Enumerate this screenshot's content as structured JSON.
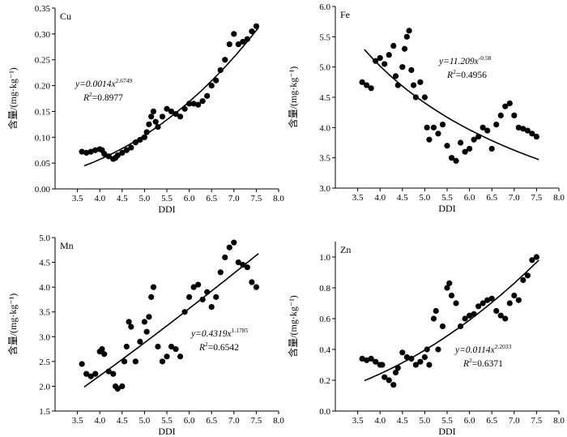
{
  "chart_data": [
    {
      "type": "scatter",
      "element": "Cu",
      "xlabel": "DDI",
      "ylabel": "含量/(mg·kg⁻¹)",
      "xlim": [
        3.0,
        8.0
      ],
      "xticks": [
        3.5,
        4.0,
        4.5,
        5.0,
        5.5,
        6.0,
        6.5,
        7.0,
        7.5,
        8.0
      ],
      "ylim": [
        0.0,
        0.35
      ],
      "yticks": [
        0.0,
        0.05,
        0.1,
        0.15,
        0.2,
        0.25,
        0.3,
        0.35
      ],
      "ytick_decimals": 2,
      "grid": false,
      "fit": {
        "a": 0.0014,
        "b": 2.6749,
        "x_range": [
          3.65,
          7.55
        ]
      },
      "equation": {
        "lhs": "y=0.0014x",
        "exp": "2.6749"
      },
      "r2": {
        "label": "R",
        "sup": "2",
        "value": "=0.8977"
      },
      "eq_pos": "upper-left",
      "points": [
        [
          3.6,
          0.072
        ],
        [
          3.7,
          0.07
        ],
        [
          3.8,
          0.072
        ],
        [
          3.9,
          0.075
        ],
        [
          4.0,
          0.077
        ],
        [
          4.05,
          0.075
        ],
        [
          4.1,
          0.068
        ],
        [
          4.2,
          0.063
        ],
        [
          4.3,
          0.058
        ],
        [
          4.35,
          0.06
        ],
        [
          4.4,
          0.065
        ],
        [
          4.5,
          0.07
        ],
        [
          4.6,
          0.075
        ],
        [
          4.7,
          0.08
        ],
        [
          4.8,
          0.09
        ],
        [
          4.9,
          0.095
        ],
        [
          5.0,
          0.1
        ],
        [
          5.05,
          0.11
        ],
        [
          5.1,
          0.125
        ],
        [
          5.15,
          0.14
        ],
        [
          5.2,
          0.15
        ],
        [
          5.25,
          0.13
        ],
        [
          5.3,
          0.12
        ],
        [
          5.4,
          0.14
        ],
        [
          5.5,
          0.155
        ],
        [
          5.6,
          0.15
        ],
        [
          5.7,
          0.145
        ],
        [
          5.8,
          0.14
        ],
        [
          5.9,
          0.155
        ],
        [
          6.0,
          0.165
        ],
        [
          6.1,
          0.165
        ],
        [
          6.2,
          0.163
        ],
        [
          6.3,
          0.17
        ],
        [
          6.4,
          0.18
        ],
        [
          6.5,
          0.2
        ],
        [
          6.6,
          0.21
        ],
        [
          6.7,
          0.23
        ],
        [
          6.8,
          0.25
        ],
        [
          6.9,
          0.28
        ],
        [
          7.0,
          0.3
        ],
        [
          7.1,
          0.28
        ],
        [
          7.2,
          0.285
        ],
        [
          7.3,
          0.29
        ],
        [
          7.4,
          0.305
        ],
        [
          7.5,
          0.315
        ]
      ]
    },
    {
      "type": "scatter",
      "element": "Fe",
      "xlabel": "DDI",
      "ylabel": "含量/(mg·kg⁻¹)",
      "xlim": [
        3.0,
        8.0
      ],
      "xticks": [
        3.5,
        4.0,
        4.5,
        5.0,
        5.5,
        6.0,
        6.5,
        7.0,
        7.5,
        8.0
      ],
      "ylim": [
        3.0,
        6.0
      ],
      "yticks": [
        3.0,
        3.5,
        4.0,
        4.5,
        5.0,
        5.5,
        6.0
      ],
      "ytick_decimals": 1,
      "grid": false,
      "fit": {
        "a": 11.209,
        "b": -0.58,
        "x_range": [
          3.65,
          7.55
        ]
      },
      "equation": {
        "lhs": "y=11.209x",
        "exp": "-0.58"
      },
      "r2": {
        "label": "R",
        "sup": "2",
        "value": "=0.4956"
      },
      "eq_pos": "upper-right",
      "points": [
        [
          3.6,
          4.75
        ],
        [
          3.7,
          4.7
        ],
        [
          3.8,
          4.65
        ],
        [
          3.9,
          5.1
        ],
        [
          4.0,
          5.15
        ],
        [
          4.1,
          5.05
        ],
        [
          4.2,
          5.2
        ],
        [
          4.3,
          5.35
        ],
        [
          4.35,
          4.85
        ],
        [
          4.4,
          4.7
        ],
        [
          4.5,
          5.0
        ],
        [
          4.55,
          5.3
        ],
        [
          4.6,
          5.5
        ],
        [
          4.65,
          5.6
        ],
        [
          4.7,
          4.95
        ],
        [
          4.75,
          4.7
        ],
        [
          4.8,
          4.5
        ],
        [
          4.9,
          4.75
        ],
        [
          5.0,
          4.5
        ],
        [
          5.05,
          4.0
        ],
        [
          5.1,
          3.8
        ],
        [
          5.2,
          4.0
        ],
        [
          5.3,
          3.9
        ],
        [
          5.4,
          4.05
        ],
        [
          5.5,
          3.7
        ],
        [
          5.6,
          3.5
        ],
        [
          5.7,
          3.45
        ],
        [
          5.8,
          3.75
        ],
        [
          5.9,
          3.6
        ],
        [
          6.0,
          3.65
        ],
        [
          6.1,
          3.8
        ],
        [
          6.2,
          3.85
        ],
        [
          6.3,
          4.0
        ],
        [
          6.4,
          3.95
        ],
        [
          6.5,
          3.65
        ],
        [
          6.6,
          4.05
        ],
        [
          6.7,
          4.2
        ],
        [
          6.8,
          4.35
        ],
        [
          6.9,
          4.4
        ],
        [
          7.0,
          4.2
        ],
        [
          7.1,
          4.0
        ],
        [
          7.2,
          3.98
        ],
        [
          7.3,
          3.95
        ],
        [
          7.4,
          3.9
        ],
        [
          7.5,
          3.85
        ]
      ]
    },
    {
      "type": "scatter",
      "element": "Mn",
      "xlabel": "DDI",
      "ylabel": "含量/(mg·kg⁻¹)",
      "xlim": [
        3.0,
        8.0
      ],
      "xticks": [
        3.5,
        4.0,
        4.5,
        5.0,
        5.5,
        6.0,
        6.5,
        7.0,
        7.5,
        8.0
      ],
      "ylim": [
        1.5,
        5.0
      ],
      "yticks": [
        1.5,
        2.0,
        2.5,
        3.0,
        3.5,
        4.0,
        4.5,
        5.0
      ],
      "ytick_decimals": 1,
      "grid": false,
      "fit": {
        "a": 0.4319,
        "b": 1.1785,
        "x_range": [
          3.65,
          7.55
        ]
      },
      "equation": {
        "lhs": "y=0.4319x",
        "exp": "1.1785"
      },
      "r2": {
        "label": "R",
        "sup": "2",
        "value": "=0.6542"
      },
      "eq_pos": "lower-right",
      "points": [
        [
          3.6,
          2.45
        ],
        [
          3.7,
          2.25
        ],
        [
          3.8,
          2.2
        ],
        [
          3.9,
          2.25
        ],
        [
          4.0,
          2.7
        ],
        [
          4.05,
          2.75
        ],
        [
          4.1,
          2.65
        ],
        [
          4.2,
          2.3
        ],
        [
          4.3,
          2.25
        ],
        [
          4.35,
          2.0
        ],
        [
          4.4,
          1.95
        ],
        [
          4.5,
          2.0
        ],
        [
          4.55,
          2.5
        ],
        [
          4.6,
          2.8
        ],
        [
          4.65,
          3.3
        ],
        [
          4.7,
          3.2
        ],
        [
          4.8,
          2.5
        ],
        [
          4.9,
          2.9
        ],
        [
          5.0,
          3.3
        ],
        [
          5.05,
          3.1
        ],
        [
          5.1,
          3.4
        ],
        [
          5.15,
          3.8
        ],
        [
          5.2,
          4.0
        ],
        [
          5.3,
          2.8
        ],
        [
          5.4,
          2.5
        ],
        [
          5.5,
          2.6
        ],
        [
          5.6,
          2.8
        ],
        [
          5.7,
          2.75
        ],
        [
          5.8,
          2.6
        ],
        [
          5.9,
          3.5
        ],
        [
          6.0,
          3.8
        ],
        [
          6.1,
          4.0
        ],
        [
          6.2,
          4.05
        ],
        [
          6.3,
          3.75
        ],
        [
          6.4,
          3.9
        ],
        [
          6.5,
          3.6
        ],
        [
          6.6,
          3.8
        ],
        [
          6.7,
          4.3
        ],
        [
          6.8,
          4.6
        ],
        [
          6.9,
          4.8
        ],
        [
          7.0,
          4.9
        ],
        [
          7.1,
          4.5
        ],
        [
          7.2,
          4.45
        ],
        [
          7.3,
          4.4
        ],
        [
          7.4,
          4.1
        ],
        [
          7.5,
          4.0
        ]
      ]
    },
    {
      "type": "scatter",
      "element": "Zn",
      "xlabel": "DDI",
      "ylabel": "含量/(mg·kg⁻¹)",
      "xlim": [
        3.0,
        8.0
      ],
      "xticks": [
        3.5,
        4.0,
        4.5,
        5.0,
        5.5,
        6.0,
        6.5,
        7.0,
        7.5,
        8.0
      ],
      "ylim": [
        0.0,
        1.1
      ],
      "yticks": [
        0.0,
        0.2,
        0.4,
        0.6,
        0.8,
        1.0
      ],
      "ytick_decimals": 1,
      "grid": false,
      "fit": {
        "a": 0.0114,
        "b": 2.2033,
        "x_range": [
          3.65,
          7.55
        ]
      },
      "equation": {
        "lhs": "y=0.0114x",
        "exp": "2.2033"
      },
      "r2": {
        "label": "R",
        "sup": "2",
        "value": "=0.6371"
      },
      "eq_pos": "lower-left",
      "points": [
        [
          3.6,
          0.34
        ],
        [
          3.7,
          0.33
        ],
        [
          3.8,
          0.34
        ],
        [
          3.9,
          0.32
        ],
        [
          4.0,
          0.3
        ],
        [
          4.05,
          0.3
        ],
        [
          4.1,
          0.22
        ],
        [
          4.2,
          0.2
        ],
        [
          4.3,
          0.17
        ],
        [
          4.35,
          0.25
        ],
        [
          4.4,
          0.28
        ],
        [
          4.5,
          0.38
        ],
        [
          4.6,
          0.35
        ],
        [
          4.7,
          0.34
        ],
        [
          4.8,
          0.3
        ],
        [
          4.9,
          0.32
        ],
        [
          5.0,
          0.35
        ],
        [
          5.05,
          0.4
        ],
        [
          5.1,
          0.3
        ],
        [
          5.2,
          0.6
        ],
        [
          5.25,
          0.65
        ],
        [
          5.3,
          0.4
        ],
        [
          5.4,
          0.55
        ],
        [
          5.5,
          0.8
        ],
        [
          5.55,
          0.83
        ],
        [
          5.6,
          0.75
        ],
        [
          5.7,
          0.7
        ],
        [
          5.8,
          0.55
        ],
        [
          5.9,
          0.6
        ],
        [
          6.0,
          0.62
        ],
        [
          6.1,
          0.63
        ],
        [
          6.2,
          0.68
        ],
        [
          6.3,
          0.7
        ],
        [
          6.4,
          0.72
        ],
        [
          6.5,
          0.73
        ],
        [
          6.6,
          0.65
        ],
        [
          6.7,
          0.62
        ],
        [
          6.8,
          0.6
        ],
        [
          6.9,
          0.7
        ],
        [
          7.0,
          0.75
        ],
        [
          7.1,
          0.72
        ],
        [
          7.2,
          0.85
        ],
        [
          7.3,
          0.88
        ],
        [
          7.4,
          0.98
        ],
        [
          7.5,
          1.0
        ]
      ]
    }
  ]
}
